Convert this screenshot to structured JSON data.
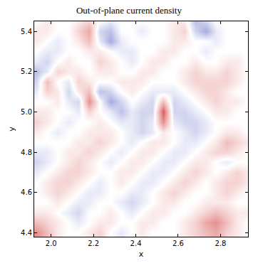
{
  "chart_data": {
    "type": "heatmap",
    "title": "Out-of-plane current density",
    "x_label": "x",
    "y_label": "y",
    "xlim": [
      1.92,
      2.93
    ],
    "ylim": [
      4.38,
      5.45
    ],
    "xticks": [
      {
        "value": 2,
        "label": "2.0"
      },
      2.2,
      2.4,
      2.6,
      2.8
    ],
    "yticks": [
      4.4,
      4.6,
      4.8,
      {
        "value": 5,
        "label": "5.0"
      },
      5.2,
      5.4
    ],
    "zlim": [
      -1,
      1
    ],
    "x": [
      1.93,
      1.98,
      2.03,
      2.08,
      2.13,
      2.18,
      2.23,
      2.28,
      2.33,
      2.38,
      2.43,
      2.48,
      2.53,
      2.58,
      2.63,
      2.68,
      2.73,
      2.78,
      2.83,
      2.88,
      2.93
    ],
    "y": [
      4.4,
      4.45,
      4.5,
      4.55,
      4.6,
      4.65,
      4.7,
      4.75,
      4.8,
      4.85,
      4.9,
      4.95,
      5.0,
      5.05,
      5.1,
      5.15,
      5.2,
      5.25,
      5.3,
      5.35,
      5.4,
      5.45
    ],
    "z": [
      [
        0.5,
        0.3,
        0.1,
        0,
        0,
        0.1,
        0.2,
        0,
        -0.1,
        0,
        0.1,
        0,
        0,
        0,
        0.1,
        0.2,
        0.3,
        0.4,
        0.2,
        0.1,
        0
      ],
      [
        0.3,
        0.2,
        0.1,
        0,
        -0.1,
        0,
        0.1,
        0.1,
        0,
        0,
        0.1,
        0.1,
        0,
        0,
        0.1,
        0.2,
        0.4,
        0.5,
        0.3,
        0.1,
        0
      ],
      [
        0.1,
        0.1,
        0,
        -0.1,
        -0.2,
        0,
        0,
        0.1,
        0,
        -0.1,
        0,
        0.1,
        0.1,
        0,
        0,
        0.1,
        0.2,
        0.3,
        0.2,
        0.1,
        0.1
      ],
      [
        0,
        0,
        0.1,
        0,
        -0.1,
        -0.1,
        0,
        0,
        -0.1,
        -0.2,
        -0.1,
        0,
        0.1,
        0.1,
        0,
        0,
        0.1,
        0.1,
        0.1,
        0,
        0
      ],
      [
        0,
        0.1,
        0.2,
        0.1,
        0,
        -0.1,
        -0.1,
        0,
        0,
        -0.1,
        -0.1,
        0,
        0.1,
        0.2,
        0.1,
        0,
        0,
        0.1,
        0.2,
        0.1,
        0
      ],
      [
        0,
        0.1,
        0.2,
        0.2,
        0.1,
        0,
        -0.1,
        0,
        0.1,
        0,
        -0.1,
        -0.1,
        0,
        0.1,
        0.2,
        0.1,
        0,
        0.1,
        0.2,
        0.2,
        0.1
      ],
      [
        -0.1,
        0,
        0.1,
        0.2,
        0.2,
        0.1,
        0,
        0,
        0.1,
        0.1,
        0,
        -0.1,
        -0.1,
        0,
        0.1,
        0.2,
        0.1,
        0,
        0.1,
        0.2,
        0.1
      ],
      [
        -0.2,
        -0.1,
        0,
        0.1,
        0.2,
        0.1,
        0,
        -0.1,
        0,
        0.1,
        0.1,
        0,
        -0.1,
        -0.1,
        0,
        0.1,
        0.1,
        0,
        -0.1,
        0,
        0
      ],
      [
        -0.1,
        -0.1,
        0,
        0.1,
        0.1,
        0.2,
        0.1,
        0,
        -0.1,
        0,
        0.1,
        0.1,
        0,
        -0.1,
        -0.1,
        0,
        0.1,
        0.2,
        0.2,
        0.1,
        0
      ],
      [
        0,
        0,
        0,
        0,
        0.1,
        0.1,
        0.2,
        0.1,
        0,
        -0.1,
        0,
        0.1,
        0.1,
        0,
        -0.1,
        -0.1,
        0,
        0.1,
        0.3,
        0.2,
        0.1
      ],
      [
        0.1,
        0,
        -0.1,
        0,
        0,
        0.1,
        0.1,
        0.1,
        0,
        -0.1,
        -0.2,
        -0.1,
        0.1,
        0,
        -0.1,
        -0.2,
        -0.1,
        0,
        0.1,
        0.1,
        0
      ],
      [
        0.2,
        0.1,
        0,
        -0.1,
        0,
        0,
        0.1,
        0,
        -0.1,
        -0.1,
        -0.2,
        -0.1,
        0.5,
        -0.1,
        -0.2,
        -0.2,
        -0.1,
        0,
        0,
        0,
        0
      ],
      [
        0.1,
        0.1,
        0,
        0,
        -0.1,
        0.2,
        0,
        -0.1,
        -0.3,
        -0.1,
        -0.2,
        -0.2,
        0.7,
        -0.2,
        -0.2,
        -0.1,
        0,
        0.1,
        0.1,
        0,
        0
      ],
      [
        0,
        0,
        0.1,
        -0.1,
        -0.2,
        0.5,
        0,
        -0.4,
        -0.2,
        0,
        -0.1,
        -0.2,
        0.3,
        -0.2,
        -0.1,
        0,
        0.1,
        0.2,
        0.1,
        0.1,
        0
      ],
      [
        -0.1,
        0.2,
        0.1,
        -0.2,
        0.1,
        0.3,
        -0.3,
        -0.2,
        0,
        0.1,
        0,
        -0.1,
        -0.1,
        -0.1,
        0,
        0.1,
        0.2,
        0.2,
        0.1,
        0,
        0
      ],
      [
        -0.2,
        0.3,
        0,
        -0.1,
        0.2,
        0.1,
        0,
        0,
        0.1,
        0.1,
        0.1,
        0,
        0,
        0,
        0.1,
        0.2,
        0.2,
        0.2,
        0.2,
        0.1,
        0
      ],
      [
        -0.3,
        -0.1,
        0.2,
        0.1,
        0.1,
        0,
        0.1,
        0.1,
        0,
        0,
        0.1,
        0.1,
        0,
        0,
        0.1,
        0.2,
        0.1,
        0.1,
        0.2,
        0.1,
        0
      ],
      [
        -0.1,
        -0.2,
        0,
        0.1,
        0,
        0,
        0.2,
        0.1,
        0,
        -0.1,
        0,
        0.1,
        0.1,
        0,
        0,
        0.1,
        0,
        0,
        0.1,
        0.1,
        0
      ],
      [
        0,
        -0.1,
        -0.1,
        0,
        0,
        0.1,
        0.1,
        0,
        -0.1,
        -0.1,
        0,
        0,
        0.1,
        0.1,
        0,
        0,
        -0.1,
        0,
        0,
        0,
        0
      ],
      [
        0.1,
        0,
        -0.1,
        0,
        0.1,
        0.3,
        -0.1,
        -0.4,
        -0.1,
        0,
        0,
        0,
        0,
        0.1,
        0.1,
        0,
        0,
        -0.1,
        0,
        0,
        0
      ],
      [
        0.1,
        0.1,
        0,
        0,
        0.2,
        0.4,
        -0.2,
        -0.3,
        0,
        0,
        -0.1,
        0,
        0,
        0.1,
        0.2,
        -0.2,
        -0.4,
        -0.1,
        0,
        0,
        0
      ],
      [
        0,
        0.1,
        0,
        0,
        0.1,
        0.2,
        0,
        -0.1,
        0,
        0,
        0,
        0,
        0,
        0.1,
        0.1,
        -0.3,
        -0.2,
        0,
        0,
        0,
        0
      ]
    ]
  }
}
